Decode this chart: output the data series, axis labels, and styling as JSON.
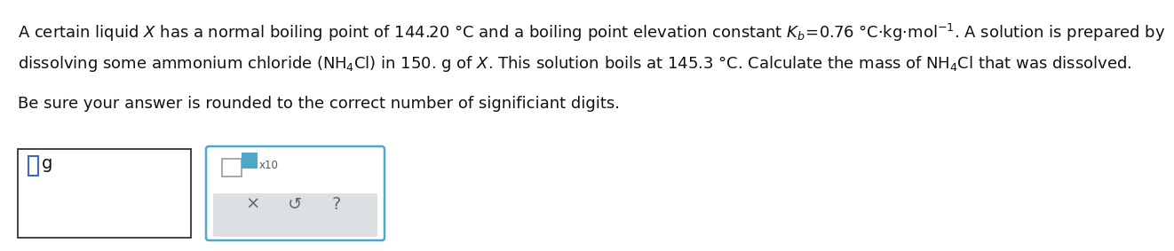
{
  "bg_color": "#ffffff",
  "text_color": "#111111",
  "line1": "A certain liquid $\\mathit{X}$ has a normal boiling point of 144.20 °C and a boiling point elevation constant $K_b\\!=\\!0.76$ °C·kg·mol$^{-1}$. A solution is prepared by",
  "line2": "dissolving some ammonium chloride (NH$_4$Cl) in 150. g of $\\mathit{X}$. This solution boils at 145.3 °C. Calculate the mass of NH$_4$Cl that was dissolved.",
  "line3": "Be sure your answer is rounded to the correct number of significiant digits.",
  "font_size_main": 13.0,
  "blue_color": "#4da8cc",
  "blue_dark": "#4169bb",
  "gray_color": "#dce0e3",
  "gray_text": "#5a6a7a"
}
